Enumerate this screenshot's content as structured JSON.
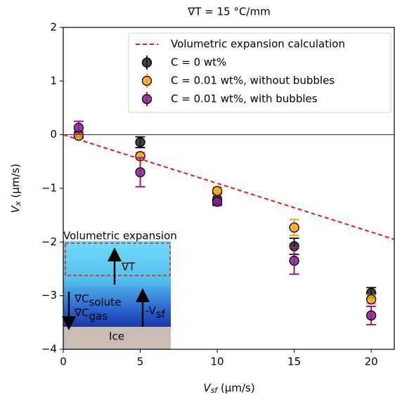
{
  "chart_data": {
    "type": "scatter",
    "title": "∇T = 15 °C/mm",
    "x_label": {
      "symbol": "V",
      "sub": "sf",
      "unit": " (μm/s)"
    },
    "y_label": {
      "symbol": "V",
      "sub": "x",
      "unit": " (μm/s)"
    },
    "xlim": [
      0,
      21.5
    ],
    "ylim": [
      -4,
      2
    ],
    "xticks": [
      0,
      5,
      10,
      15,
      20
    ],
    "yticks": [
      {
        "value": -4,
        "label": "−4"
      },
      {
        "value": -3,
        "label": "−3"
      },
      {
        "value": -2,
        "label": "−2"
      },
      {
        "value": -1,
        "label": "−1"
      },
      0,
      1,
      2
    ],
    "hline": 0,
    "fit": {
      "name": "Volumetric expansion calculation",
      "color": "#e8161b",
      "x": [
        0,
        21.5
      ],
      "values": [
        0,
        -1.95
      ]
    },
    "series": [
      {
        "name": "C = 0 wt%",
        "color": "#1f1f1f",
        "x": [
          1,
          5,
          10,
          15,
          20
        ],
        "values": [
          0.0,
          -0.14,
          -1.2,
          -2.08,
          -2.95
        ],
        "errors": [
          0.05,
          0.1,
          0.1,
          0.15,
          0.1
        ]
      },
      {
        "name": "C = 0.01 wt%, without bubbles",
        "color": "#f5a31a",
        "x": [
          1,
          5,
          10,
          15,
          20
        ],
        "values": [
          -0.02,
          -0.4,
          -1.05,
          -1.73,
          -3.07
        ],
        "errors": [
          0.05,
          0.07,
          0.07,
          0.15,
          0.08
        ]
      },
      {
        "name": "C = 0.01 wt%, with bubbles",
        "color": "#8b1e8f",
        "x": [
          1,
          5,
          10,
          15,
          20
        ],
        "values": [
          0.13,
          -0.7,
          -1.25,
          -2.35,
          -3.37
        ],
        "errors": [
          0.12,
          0.27,
          0.07,
          0.25,
          0.17
        ]
      }
    ],
    "legend": "upper right",
    "inset": {
      "title": "Volumetric expansion",
      "gradient": "∇T",
      "c1": "∇C",
      "c1_sub": "solute",
      "c2": "∇C",
      "c2_sub": "gas",
      "v": "-V",
      "v_sub": "sf",
      "ice": "Ice"
    }
  }
}
